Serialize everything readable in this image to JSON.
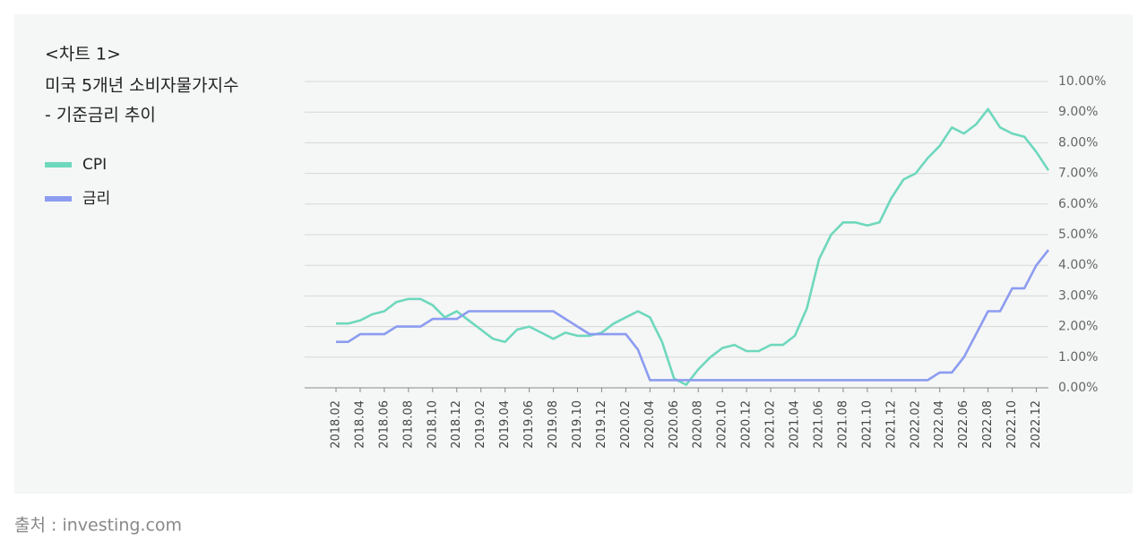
{
  "chart_data": {
    "type": "line",
    "title_lines": [
      "<차트 1>",
      "미국 5개년 소비자물가지수",
      "- 기준금리 추이"
    ],
    "categories": [
      "2018.02",
      null,
      "2018.04",
      null,
      "2018.06",
      null,
      "2018.08",
      null,
      "2018.10",
      null,
      "2018.12",
      null,
      "2019.02",
      null,
      "2019.04",
      null,
      "2019.06",
      null,
      "2019.08",
      null,
      "2019.10",
      null,
      "2019.12",
      null,
      "2020.02",
      null,
      "2020.04",
      null,
      "2020.06",
      null,
      "2020.08",
      null,
      "2020.10",
      null,
      "2020.12",
      null,
      "2021.02",
      null,
      "2021.04",
      null,
      "2021.06",
      null,
      "2021.08",
      null,
      "2021.10",
      null,
      "2021.12",
      null,
      "2022.02",
      null,
      "2022.04",
      null,
      "2022.06",
      null,
      "2022.08",
      null,
      "2022.10",
      null,
      "2022.12",
      null
    ],
    "series": [
      {
        "name": "CPI",
        "color": "#6ed8bd",
        "values": [
          2.1,
          2.1,
          2.2,
          2.4,
          2.5,
          2.8,
          2.9,
          2.9,
          2.7,
          2.3,
          2.5,
          2.2,
          1.9,
          1.6,
          1.5,
          1.9,
          2.0,
          1.8,
          1.6,
          1.8,
          1.7,
          1.7,
          1.8,
          2.1,
          2.3,
          2.5,
          2.3,
          1.5,
          0.3,
          0.1,
          0.6,
          1.0,
          1.3,
          1.4,
          1.2,
          1.2,
          1.4,
          1.4,
          1.7,
          2.6,
          4.2,
          5.0,
          5.4,
          5.4,
          5.3,
          5.4,
          6.2,
          6.8,
          7.0,
          7.5,
          7.9,
          8.5,
          8.3,
          8.6,
          9.1,
          8.5,
          8.3,
          8.2,
          7.7,
          7.1
        ]
      },
      {
        "name": "금리",
        "color": "#8c9cf0",
        "values": [
          1.5,
          1.5,
          1.75,
          1.75,
          1.75,
          2.0,
          2.0,
          2.0,
          2.25,
          2.25,
          2.25,
          2.5,
          2.5,
          2.5,
          2.5,
          2.5,
          2.5,
          2.5,
          2.5,
          2.25,
          2.0,
          1.75,
          1.75,
          1.75,
          1.75,
          1.25,
          0.25,
          0.25,
          0.25,
          0.25,
          0.25,
          0.25,
          0.25,
          0.25,
          0.25,
          0.25,
          0.25,
          0.25,
          0.25,
          0.25,
          0.25,
          0.25,
          0.25,
          0.25,
          0.25,
          0.25,
          0.25,
          0.25,
          0.25,
          0.25,
          0.5,
          0.5,
          1.0,
          1.75,
          2.5,
          2.5,
          3.25,
          3.25,
          4.0,
          4.5
        ]
      }
    ],
    "ylim": [
      0,
      10
    ],
    "yticks": [
      {
        "value": 0,
        "label": "0.00%"
      },
      {
        "value": 1,
        "label": "1.00%"
      },
      {
        "value": 2,
        "label": "2.00%"
      },
      {
        "value": 3,
        "label": "3.00%"
      },
      {
        "value": 4,
        "label": "4.00%"
      },
      {
        "value": 5,
        "label": "5.00%"
      },
      {
        "value": 6,
        "label": "6.00%"
      },
      {
        "value": 7,
        "label": "7.00%"
      },
      {
        "value": 8,
        "label": "8.00%"
      },
      {
        "value": 9,
        "label": "9.00%"
      },
      {
        "value": 10,
        "label": "10.00%"
      }
    ],
    "grid": true,
    "legend": "left",
    "source": "출처 : investing.com"
  }
}
